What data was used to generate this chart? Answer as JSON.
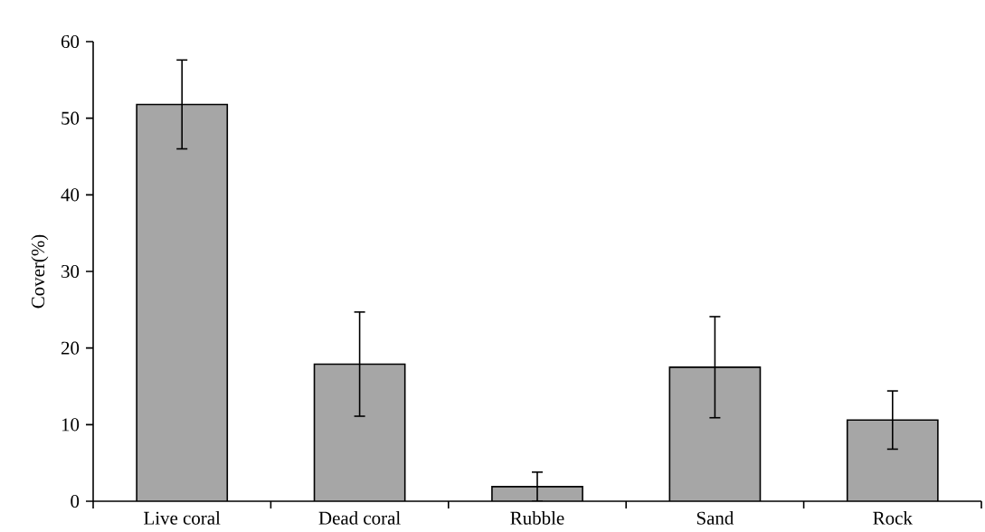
{
  "chart_data": {
    "type": "bar",
    "ylabel": "Cover(%)",
    "categories": [
      "Live coral",
      "Dead coral",
      "Rubble",
      "Sand",
      "Rock"
    ],
    "values": [
      51.8,
      17.9,
      1.9,
      17.5,
      10.6
    ],
    "errors": [
      5.8,
      6.8,
      1.9,
      6.6,
      3.8
    ],
    "color": "#a6a6a6",
    "ylim": [
      0,
      60
    ],
    "yticks": [
      0,
      10,
      20,
      30,
      40,
      50,
      60
    ]
  }
}
